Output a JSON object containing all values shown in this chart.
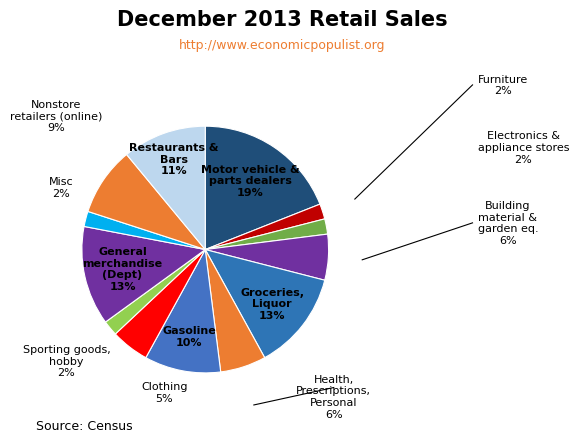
{
  "title": "December 2013 Retail Sales",
  "subtitle": "http://www.economicpopulist.org",
  "source": "Source: Census",
  "slices": [
    {
      "label": "Motor vehicle &\nparts dealers\n19%",
      "value": 19,
      "color": "#1F4E79",
      "label_inside": true
    },
    {
      "label": "Furniture\n2%",
      "value": 2,
      "color": "#C00000",
      "label_inside": false
    },
    {
      "label": "Electronics &\nappliance stores\n2%",
      "value": 2,
      "color": "#70AD47",
      "label_inside": false
    },
    {
      "label": "Building\nmaterial &\ngarden eq.\n6%",
      "value": 6,
      "color": "#7030A0",
      "label_inside": false
    },
    {
      "label": "Groceries,\nLiquor\n13%",
      "value": 13,
      "color": "#2E75B6",
      "label_inside": true
    },
    {
      "label": "Health,\nPrescriptions,\nPersonal\n6%",
      "value": 6,
      "color": "#ED7D31",
      "label_inside": false
    },
    {
      "label": "Gasoline\n10%",
      "value": 10,
      "color": "#4472C4",
      "label_inside": true
    },
    {
      "label": "Clothing\n5%",
      "value": 5,
      "color": "#FF0000",
      "label_inside": false
    },
    {
      "label": "Sporting goods,\nhobby\n2%",
      "value": 2,
      "color": "#92D050",
      "label_inside": false
    },
    {
      "label": "General\nmerchandise\n(Dept)\n13%",
      "value": 13,
      "color": "#7030A0",
      "label_inside": true
    },
    {
      "label": "Misc\n2%",
      "value": 2,
      "color": "#00B0F0",
      "label_inside": false
    },
    {
      "label": "Nonstore\nretailers (online)\n9%",
      "value": 9,
      "color": "#ED7D31",
      "label_inside": false
    },
    {
      "label": "Restaurants &\nBars\n11%",
      "value": 11,
      "color": "#BDD7EE",
      "label_inside": true
    }
  ],
  "title_fontsize": 15,
  "subtitle_color": "#ED7D31",
  "subtitle_fontsize": 9,
  "source_fontsize": 9,
  "label_fontsize": 8
}
